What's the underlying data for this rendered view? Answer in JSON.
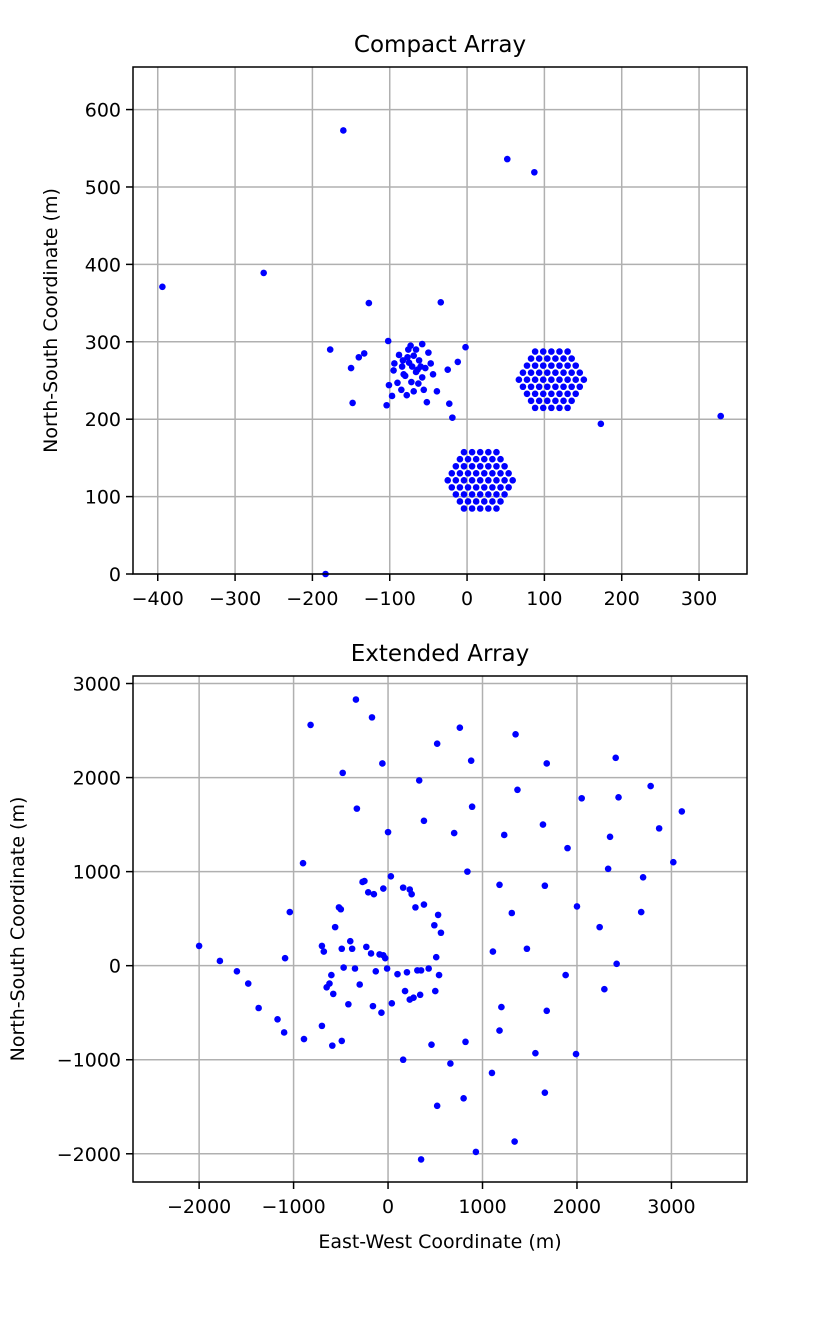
{
  "chart_data": [
    {
      "type": "scatter",
      "title": "Compact Array",
      "xlabel": "",
      "ylabel": "North-South Coordinate (m)",
      "xlim": [
        -432,
        362
      ],
      "ylim": [
        0,
        655
      ],
      "xticks": [
        -400,
        -300,
        -200,
        -100,
        0,
        100,
        200,
        300
      ],
      "yticks": [
        0,
        100,
        200,
        300,
        400,
        500,
        600
      ],
      "grid": true,
      "color": "#0000ff",
      "points": [
        [
          -394,
          371
        ],
        [
          -263,
          389
        ],
        [
          -160,
          573
        ],
        [
          -127,
          350
        ],
        [
          -34,
          351
        ],
        [
          52,
          536
        ],
        [
          87,
          519
        ],
        [
          -177,
          290
        ],
        [
          -148,
          221
        ],
        [
          -183,
          0
        ],
        [
          173,
          194
        ],
        [
          328,
          204
        ],
        [
          -133,
          285
        ],
        [
          -140,
          280
        ],
        [
          -150,
          266
        ],
        [
          -102,
          301
        ],
        [
          -101,
          244
        ],
        [
          -104,
          218
        ],
        [
          -97,
          230
        ],
        [
          -94,
          272
        ],
        [
          -90,
          247
        ],
        [
          -85,
          238
        ],
        [
          -84,
          268
        ],
        [
          -80,
          256
        ],
        [
          -78,
          231
        ],
        [
          -77,
          280
        ],
        [
          -75,
          273
        ],
        [
          -73,
          295
        ],
        [
          -71,
          268
        ],
        [
          -69,
          282
        ],
        [
          -69,
          236
        ],
        [
          -66,
          290
        ],
        [
          -64,
          264
        ],
        [
          -62,
          276
        ],
        [
          -58,
          297
        ],
        [
          -58,
          254
        ],
        [
          -56,
          238
        ],
        [
          -54,
          266
        ],
        [
          -52,
          222
        ],
        [
          -50,
          286
        ],
        [
          -47,
          272
        ],
        [
          -44,
          258
        ],
        [
          -39,
          236
        ],
        [
          -25,
          264
        ],
        [
          -23,
          220
        ],
        [
          -19,
          202
        ],
        [
          -12,
          274
        ],
        [
          -2,
          293
        ],
        [
          -88,
          283
        ],
        [
          -83,
          276
        ],
        [
          -82,
          258
        ],
        [
          -72,
          248
        ],
        [
          -66,
          261
        ],
        [
          -63,
          246
        ],
        [
          -60,
          268
        ],
        [
          -95,
          263
        ],
        [
          -76,
          290
        ]
      ],
      "hex_clusters": [
        {
          "center": [
            17,
            121
          ],
          "spacing": 10.5
        },
        {
          "center": [
            109,
            251
          ],
          "spacing": 10.5
        }
      ]
    },
    {
      "type": "scatter",
      "title": "Extended Array",
      "xlabel": "East-West Coordinate (m)",
      "ylabel": "North-South Coordinate (m)",
      "xlim": [
        -2700,
        3800
      ],
      "ylim": [
        -2300,
        3080
      ],
      "xticks": [
        -2000,
        -1000,
        0,
        1000,
        2000,
        3000
      ],
      "yticks": [
        -2000,
        -1000,
        0,
        1000,
        2000,
        3000
      ],
      "grid": true,
      "color": "#0000ff",
      "points": [
        [
          -2000,
          210
        ],
        [
          -1780,
          50
        ],
        [
          -1600,
          -60
        ],
        [
          -1480,
          -190
        ],
        [
          -1370,
          -450
        ],
        [
          -1170,
          -570
        ],
        [
          -1100,
          -710
        ],
        [
          -1090,
          80
        ],
        [
          -1040,
          570
        ],
        [
          -900,
          1090
        ],
        [
          -890,
          -780
        ],
        [
          -820,
          2560
        ],
        [
          -700,
          -640
        ],
        [
          -700,
          210
        ],
        [
          -680,
          150
        ],
        [
          -650,
          -230
        ],
        [
          -620,
          -190
        ],
        [
          -600,
          -100
        ],
        [
          -590,
          -850
        ],
        [
          -580,
          -300
        ],
        [
          -560,
          410
        ],
        [
          -520,
          620
        ],
        [
          -500,
          600
        ],
        [
          -490,
          180
        ],
        [
          -490,
          -800
        ],
        [
          -480,
          2050
        ],
        [
          -470,
          -20
        ],
        [
          -420,
          -410
        ],
        [
          -400,
          260
        ],
        [
          -380,
          180
        ],
        [
          -350,
          -30
        ],
        [
          -340,
          2830
        ],
        [
          -330,
          1670
        ],
        [
          -300,
          -200
        ],
        [
          -270,
          890
        ],
        [
          -250,
          900
        ],
        [
          -230,
          200
        ],
        [
          -210,
          780
        ],
        [
          -180,
          130
        ],
        [
          -170,
          2640
        ],
        [
          -160,
          -430
        ],
        [
          -150,
          760
        ],
        [
          -130,
          -60
        ],
        [
          -90,
          120
        ],
        [
          -70,
          -500
        ],
        [
          -60,
          2150
        ],
        [
          -50,
          820
        ],
        [
          -50,
          110
        ],
        [
          -30,
          80
        ],
        [
          -10,
          -30
        ],
        [
          0,
          1420
        ],
        [
          30,
          950
        ],
        [
          40,
          -400
        ],
        [
          100,
          -90
        ],
        [
          160,
          830
        ],
        [
          160,
          -1000
        ],
        [
          180,
          -270
        ],
        [
          200,
          -70
        ],
        [
          230,
          810
        ],
        [
          230,
          -360
        ],
        [
          250,
          760
        ],
        [
          270,
          -340
        ],
        [
          290,
          620
        ],
        [
          310,
          -50
        ],
        [
          330,
          1970
        ],
        [
          340,
          -310
        ],
        [
          350,
          -2060
        ],
        [
          350,
          -50
        ],
        [
          380,
          1540
        ],
        [
          380,
          650
        ],
        [
          430,
          -30
        ],
        [
          460,
          -840
        ],
        [
          490,
          430
        ],
        [
          500,
          -270
        ],
        [
          510,
          90
        ],
        [
          520,
          -1490
        ],
        [
          520,
          2360
        ],
        [
          530,
          540
        ],
        [
          540,
          -100
        ],
        [
          560,
          350
        ],
        [
          660,
          -1040
        ],
        [
          700,
          1410
        ],
        [
          760,
          2530
        ],
        [
          800,
          -1410
        ],
        [
          820,
          -810
        ],
        [
          840,
          1000
        ],
        [
          880,
          2180
        ],
        [
          890,
          1690
        ],
        [
          930,
          -1980
        ],
        [
          1100,
          -1140
        ],
        [
          1110,
          150
        ],
        [
          1180,
          -690
        ],
        [
          1180,
          860
        ],
        [
          1200,
          -440
        ],
        [
          1230,
          1390
        ],
        [
          1310,
          560
        ],
        [
          1340,
          -1870
        ],
        [
          1350,
          2460
        ],
        [
          1370,
          1870
        ],
        [
          1470,
          180
        ],
        [
          1560,
          -930
        ],
        [
          1640,
          1500
        ],
        [
          1660,
          850
        ],
        [
          1660,
          -1350
        ],
        [
          1680,
          -480
        ],
        [
          1680,
          2150
        ],
        [
          1880,
          -100
        ],
        [
          1900,
          1250
        ],
        [
          1990,
          -940
        ],
        [
          2000,
          630
        ],
        [
          2050,
          1780
        ],
        [
          2240,
          410
        ],
        [
          2290,
          -250
        ],
        [
          2330,
          1030
        ],
        [
          2350,
          1370
        ],
        [
          2410,
          2210
        ],
        [
          2420,
          20
        ],
        [
          2440,
          1790
        ],
        [
          2680,
          570
        ],
        [
          2700,
          940
        ],
        [
          2780,
          1910
        ],
        [
          2870,
          1460
        ],
        [
          3020,
          1100
        ],
        [
          3110,
          1640
        ]
      ]
    }
  ]
}
